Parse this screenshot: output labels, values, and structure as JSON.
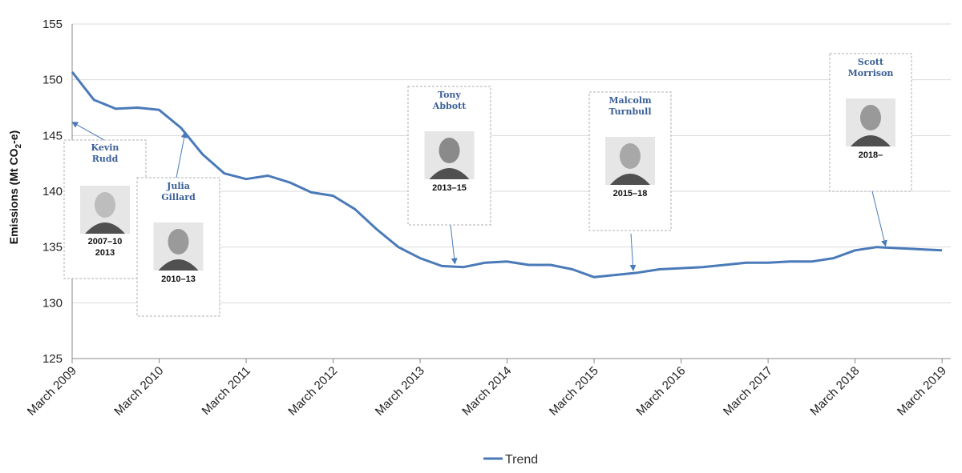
{
  "chart_data": {
    "type": "line",
    "ylabel": "Emissions (Mt CO",
    "ylabel_sub": "2",
    "ylabel_end": "-e)",
    "ylim": [
      125,
      155
    ],
    "yticks": [
      125,
      130,
      135,
      140,
      145,
      150,
      155
    ],
    "xlim": [
      2009,
      2019.1
    ],
    "xticks": [
      {
        "label": "March 2009",
        "x": 2009
      },
      {
        "label": "March 2010",
        "x": 2010
      },
      {
        "label": "March 2011",
        "x": 2011
      },
      {
        "label": "March 2012",
        "x": 2012
      },
      {
        "label": "March 2013",
        "x": 2013
      },
      {
        "label": "March 2014",
        "x": 2014
      },
      {
        "label": "March 2015",
        "x": 2015
      },
      {
        "label": "March 2016",
        "x": 2016
      },
      {
        "label": "March 2017",
        "x": 2017
      },
      {
        "label": "March 2018",
        "x": 2018
      },
      {
        "label": "March 2019",
        "x": 2019
      }
    ],
    "grid": true,
    "legend_position": "bottom",
    "series": [
      {
        "name": "Trend",
        "color": "#4a7ab8",
        "points": [
          [
            2009.0,
            150.7
          ],
          [
            2009.25,
            148.2
          ],
          [
            2009.5,
            147.4
          ],
          [
            2009.75,
            147.5
          ],
          [
            2010.0,
            147.3
          ],
          [
            2010.25,
            145.7
          ],
          [
            2010.5,
            143.3
          ],
          [
            2010.75,
            141.6
          ],
          [
            2011.0,
            141.1
          ],
          [
            2011.25,
            141.4
          ],
          [
            2011.5,
            140.8
          ],
          [
            2011.75,
            139.9
          ],
          [
            2012.0,
            139.6
          ],
          [
            2012.25,
            138.4
          ],
          [
            2012.5,
            136.6
          ],
          [
            2012.75,
            135.0
          ],
          [
            2013.0,
            134.0
          ],
          [
            2013.25,
            133.3
          ],
          [
            2013.5,
            133.2
          ],
          [
            2013.75,
            133.6
          ],
          [
            2014.0,
            133.7
          ],
          [
            2014.25,
            133.4
          ],
          [
            2014.5,
            133.4
          ],
          [
            2014.75,
            133.0
          ],
          [
            2015.0,
            132.3
          ],
          [
            2015.25,
            132.5
          ],
          [
            2015.5,
            132.7
          ],
          [
            2015.75,
            133.0
          ],
          [
            2016.0,
            133.1
          ],
          [
            2016.25,
            133.2
          ],
          [
            2016.5,
            133.4
          ],
          [
            2016.75,
            133.6
          ],
          [
            2017.0,
            133.6
          ],
          [
            2017.25,
            133.7
          ],
          [
            2017.5,
            133.7
          ],
          [
            2017.75,
            134.0
          ],
          [
            2018.0,
            134.7
          ],
          [
            2018.25,
            135.0
          ],
          [
            2018.5,
            134.9
          ],
          [
            2018.75,
            134.8
          ],
          [
            2019.0,
            134.7
          ]
        ]
      }
    ],
    "annotations": [
      {
        "name_lines": [
          "Kevin",
          "Rudd"
        ],
        "terms": [
          "2007–10",
          "2013"
        ],
        "photo_shade": "#bdbdbd",
        "arrow_to": [
          2009.0,
          146.2
        ]
      },
      {
        "name_lines": [
          "Julia",
          "Gillard"
        ],
        "terms": [
          "2010–13"
        ],
        "photo_shade": "#9a9a9a",
        "arrow_to": [
          2010.3,
          145.3
        ]
      },
      {
        "name_lines": [
          "Tony",
          "Abbott"
        ],
        "terms": [
          "2013–15"
        ],
        "photo_shade": "#8a8a8a",
        "arrow_to": [
          2013.4,
          133.5
        ]
      },
      {
        "name_lines": [
          "Malcolm",
          "Turnbull"
        ],
        "terms": [
          "2015–18"
        ],
        "photo_shade": "#a8a8a8",
        "arrow_to": [
          2015.45,
          132.9
        ]
      },
      {
        "name_lines": [
          "Scott",
          "Morrison"
        ],
        "terms": [
          "2018–"
        ],
        "photo_shade": "#999999",
        "arrow_to": [
          2018.35,
          135.1
        ]
      }
    ]
  }
}
